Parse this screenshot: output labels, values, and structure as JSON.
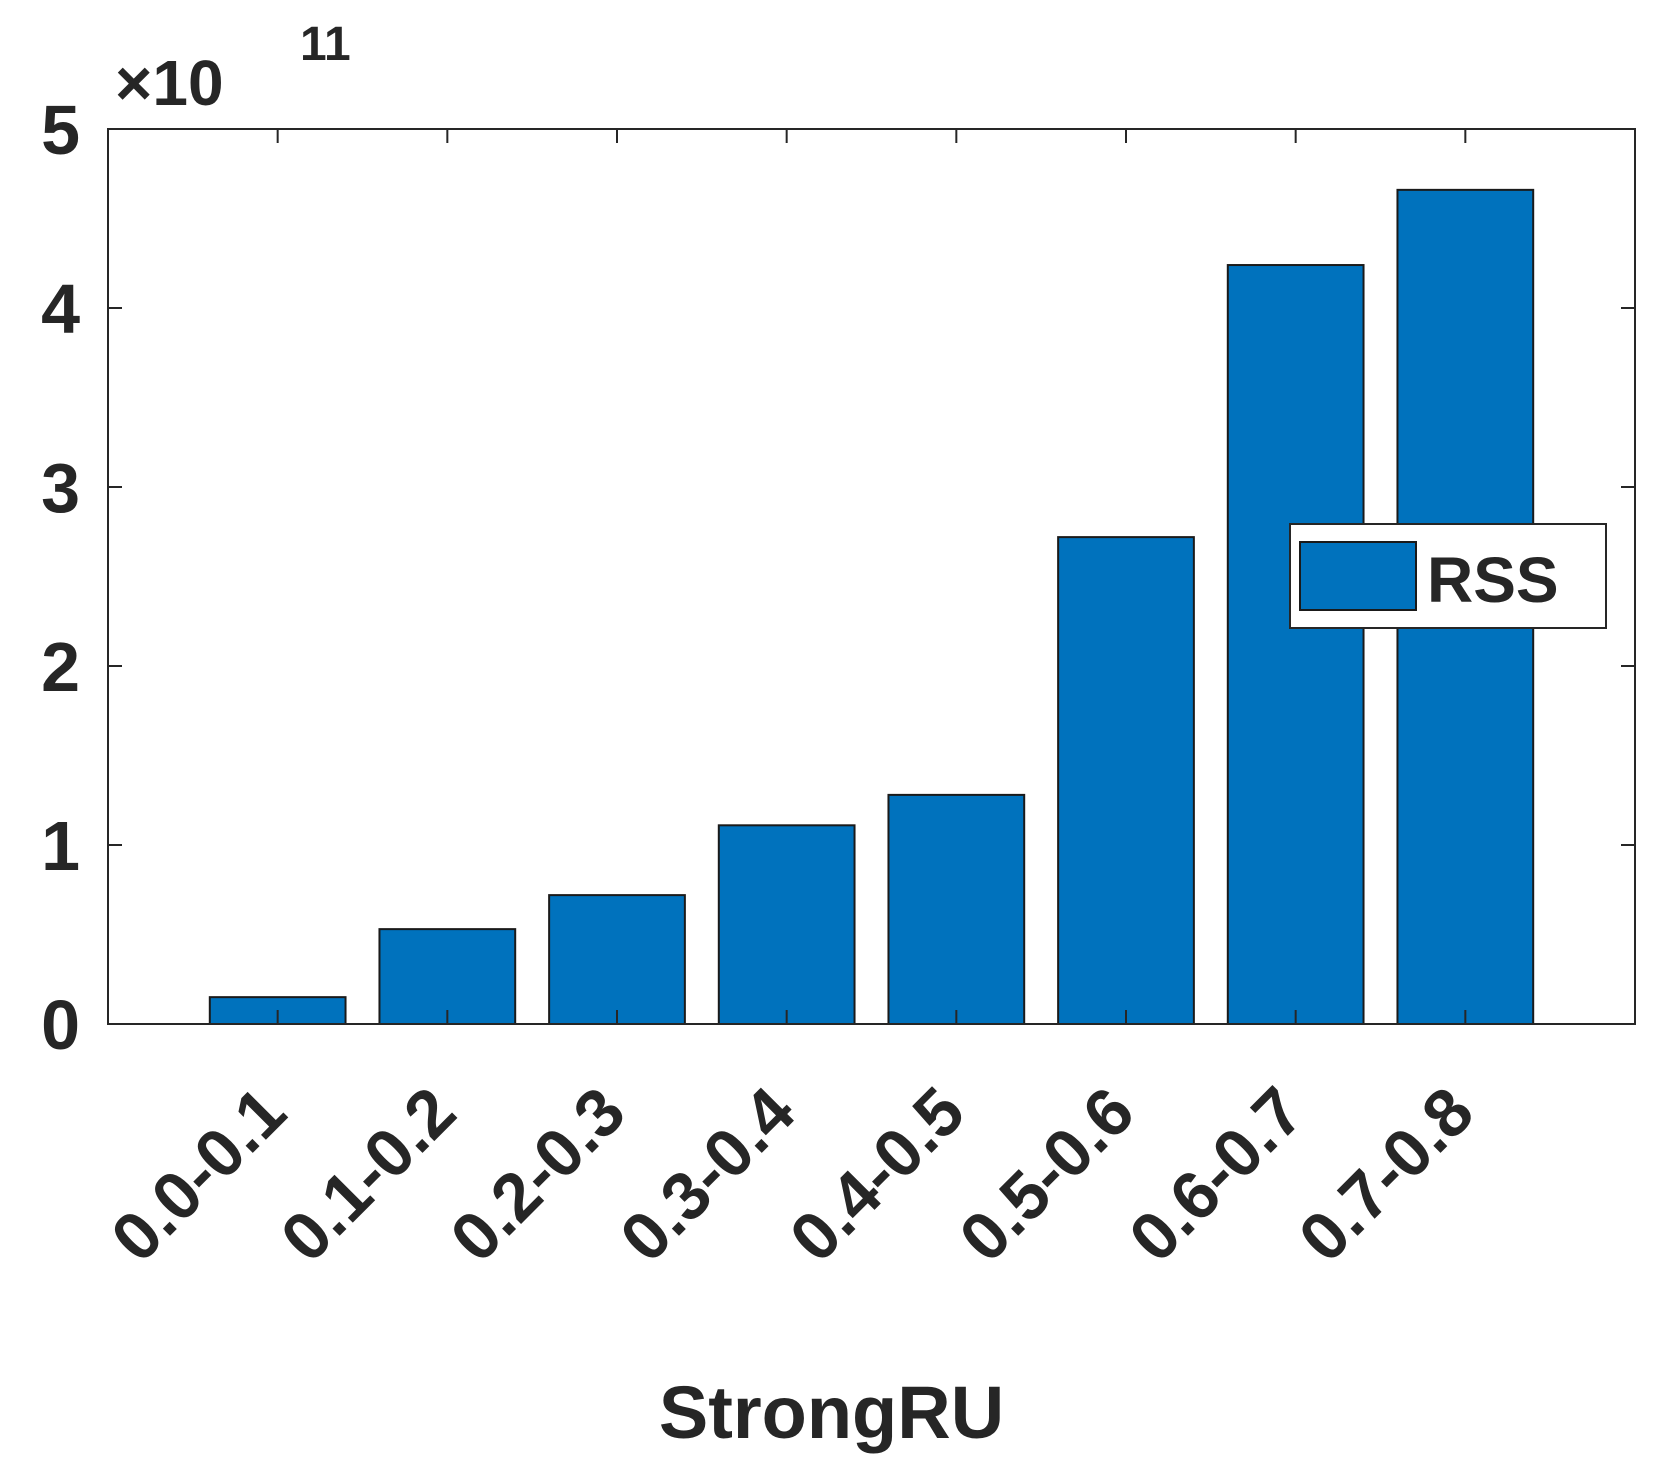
{
  "chart_data": {
    "type": "bar",
    "title": "",
    "xlabel": "StrongRU",
    "ylabel": "",
    "categories": [
      "0.0-0.1",
      "0.1-0.2",
      "0.2-0.3",
      "0.3-0.4",
      "0.4-0.5",
      "0.5-0.6",
      "0.6-0.7",
      "0.7-0.8"
    ],
    "series": [
      {
        "name": "RSS",
        "color": "#0072BD",
        "values": [
          15000000000.0,
          53000000000.0,
          72000000000.0,
          111000000000.0,
          128000000000.0,
          272000000000.0,
          424000000000.0,
          466000000000.0
        ]
      }
    ],
    "ylim": [
      0,
      500000000000.0
    ],
    "yticks": [
      0,
      1,
      2,
      3,
      4,
      5
    ],
    "ytick_labels": [
      "0",
      "1",
      "2",
      "3",
      "4",
      "5"
    ],
    "y_exponent_label": {
      "base": "×10",
      "power": "11"
    },
    "grid": false,
    "legend": {
      "placement": "right",
      "entries": [
        "RSS"
      ]
    },
    "colors": {
      "bar_fill": "#0072BD",
      "bar_edge": "#1a1a1a",
      "axis": "#262626",
      "text": "#262626"
    }
  }
}
